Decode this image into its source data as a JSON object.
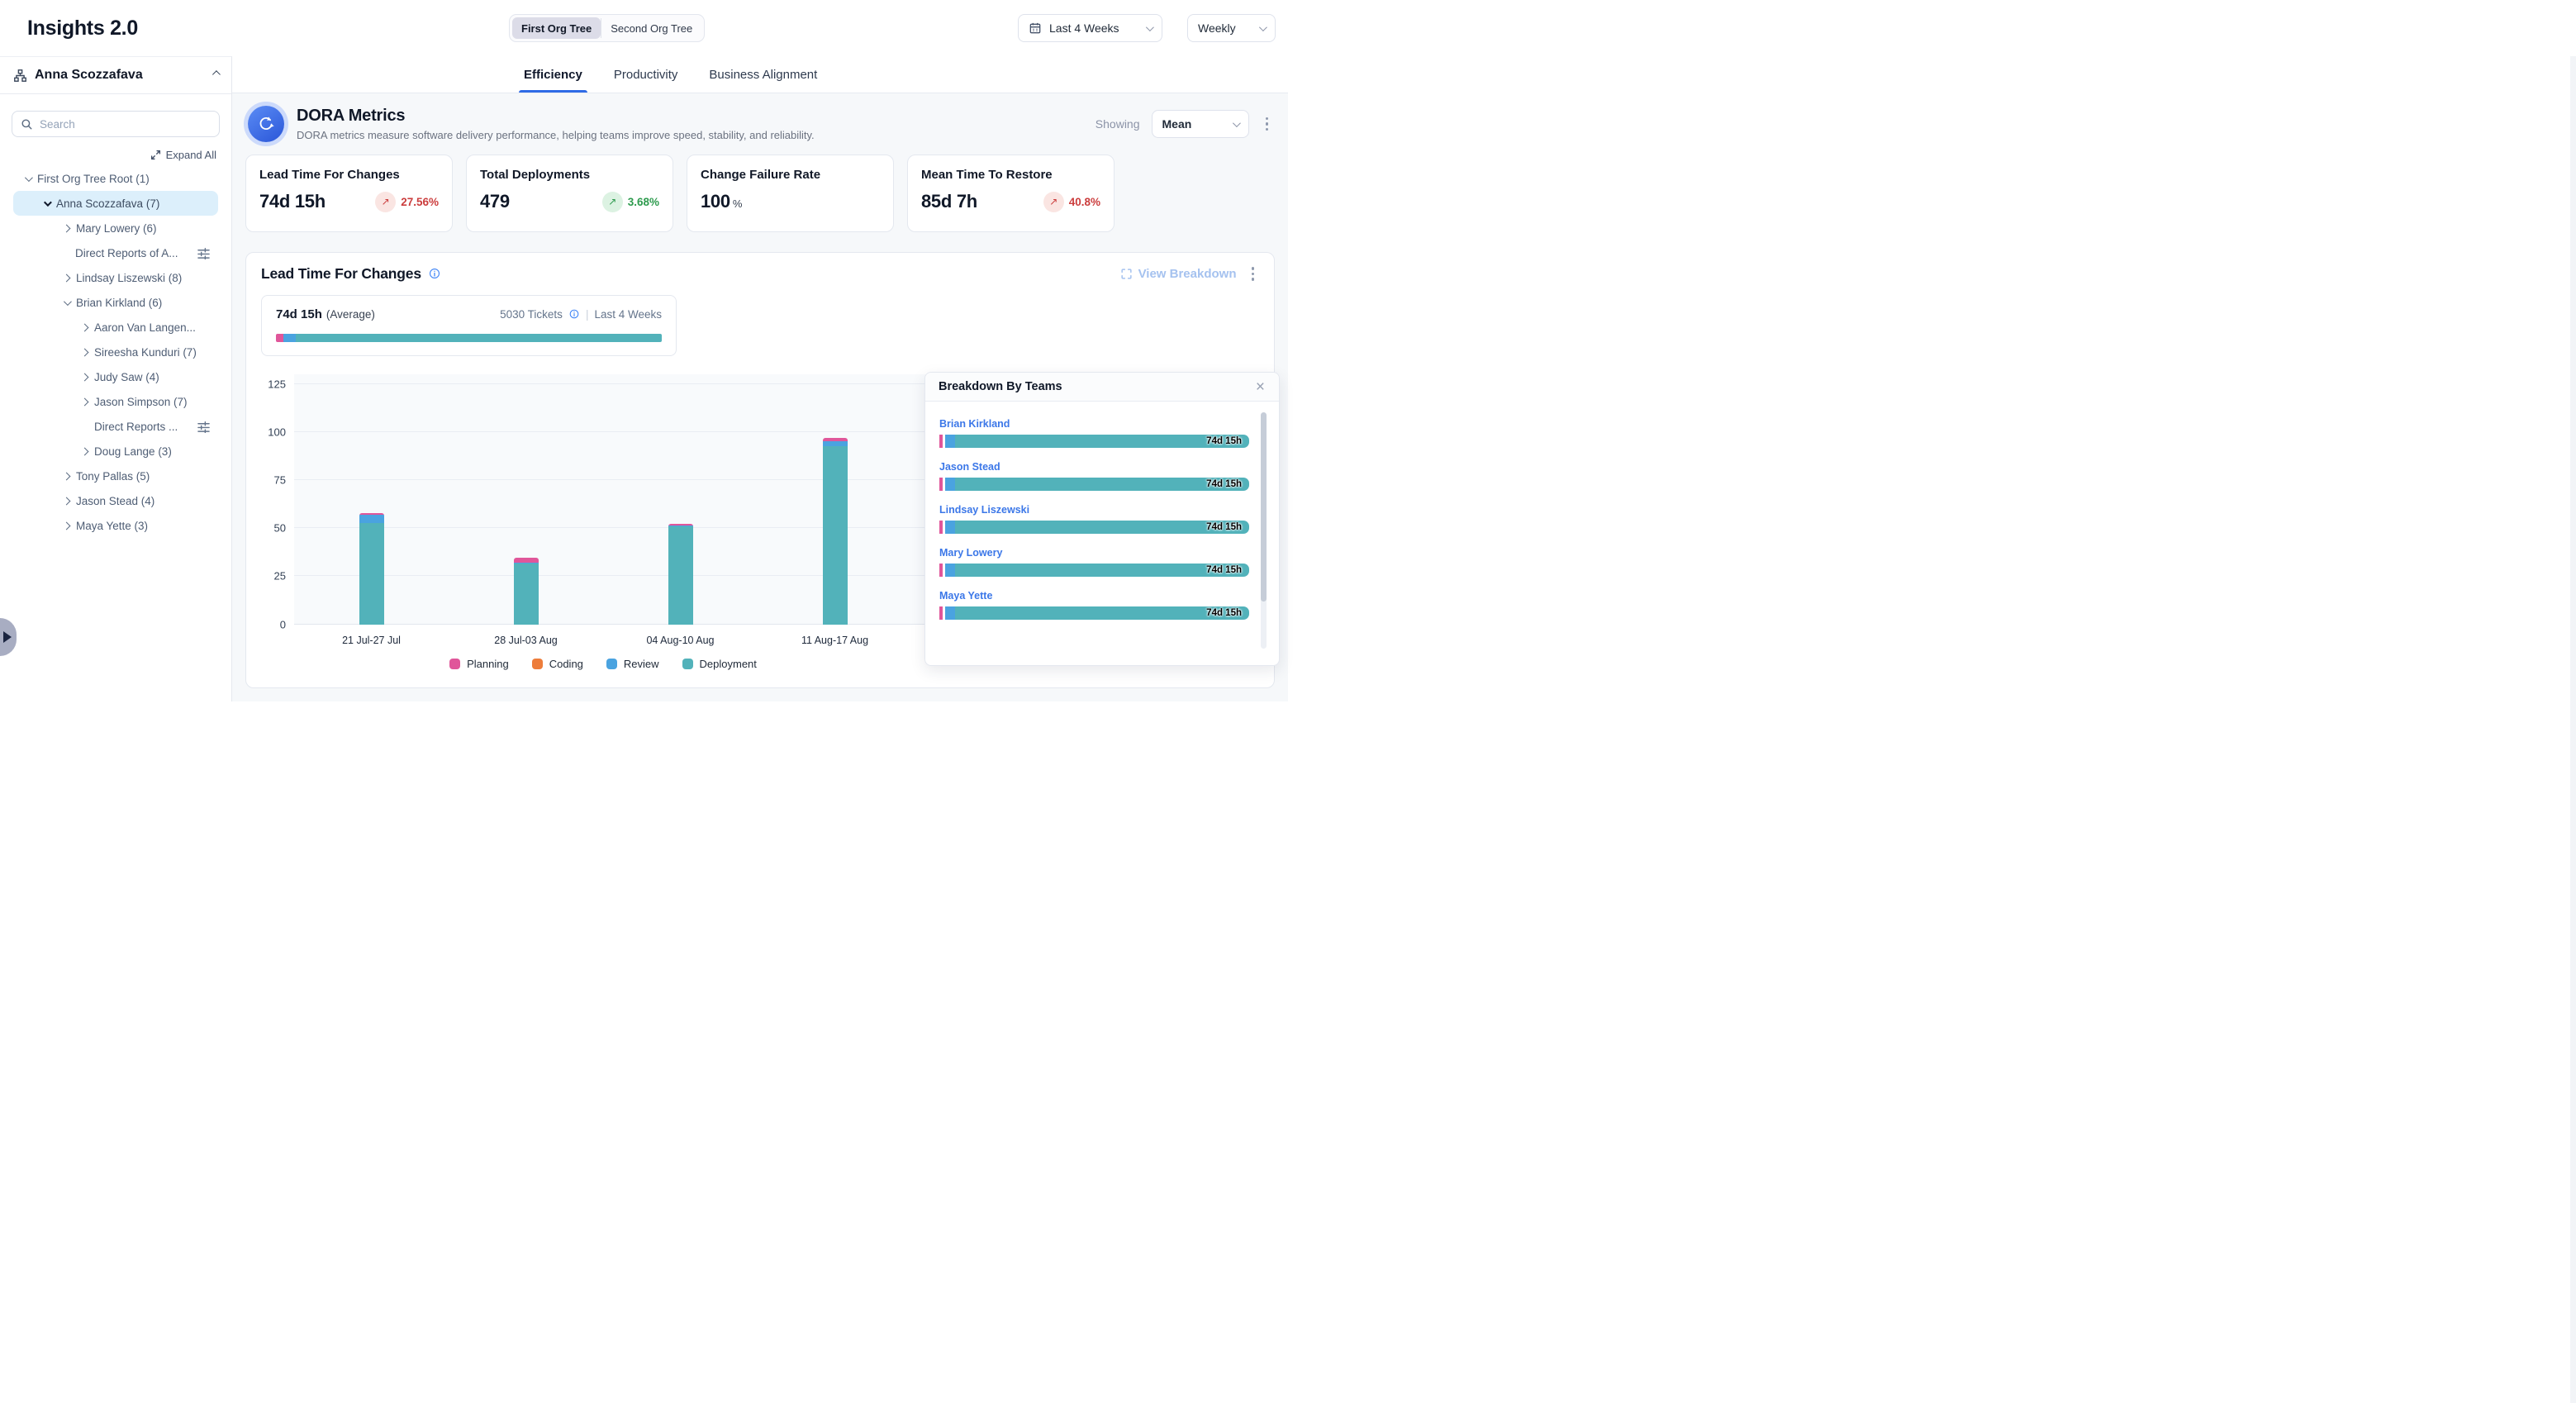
{
  "app": {
    "title": "Insights 2.0"
  },
  "header": {
    "org_toggle": {
      "options": [
        "First Org Tree",
        "Second Org Tree"
      ],
      "selected": "First Org Tree"
    },
    "date_range": {
      "label": "Last 4 Weeks"
    },
    "granularity": {
      "label": "Weekly"
    }
  },
  "sidebar": {
    "user": "Anna Scozzafava",
    "search_placeholder": "Search",
    "expand_all_label": "Expand All",
    "tree": [
      {
        "label": "First Org Tree Root (1)",
        "chevron": "down",
        "depth": 0
      },
      {
        "label": "Anna Scozzafava (7)",
        "chevron": "down",
        "depth": 1,
        "selected": true
      },
      {
        "label": "Mary Lowery (6)",
        "chevron": "right",
        "depth": 2
      },
      {
        "label": "Direct Reports of A...",
        "chevron": null,
        "depth": 2,
        "trailing_icon": "sliders-icon"
      },
      {
        "label": "Lindsay Liszewski (8)",
        "chevron": "right",
        "depth": 2
      },
      {
        "label": "Brian Kirkland (6)",
        "chevron": "down",
        "depth": 2
      },
      {
        "label": "Aaron Van Langen...",
        "chevron": "right",
        "depth": 3
      },
      {
        "label": "Sireesha Kunduri (7)",
        "chevron": "right",
        "depth": 3
      },
      {
        "label": "Judy Saw (4)",
        "chevron": "right",
        "depth": 3
      },
      {
        "label": "Jason Simpson (7)",
        "chevron": "right",
        "depth": 3
      },
      {
        "label": "Direct Reports ...",
        "chevron": null,
        "depth": 3,
        "trailing_icon": "sliders-icon"
      },
      {
        "label": "Doug Lange (3)",
        "chevron": "right",
        "depth": 3
      },
      {
        "label": "Tony Pallas (5)",
        "chevron": "right",
        "depth": 2
      },
      {
        "label": "Jason Stead (4)",
        "chevron": "right",
        "depth": 2
      },
      {
        "label": "Maya Yette (3)",
        "chevron": "right",
        "depth": 2
      }
    ]
  },
  "tabs": {
    "items": [
      "Efficiency",
      "Productivity",
      "Business Alignment"
    ],
    "active": "Efficiency"
  },
  "dora": {
    "title": "DORA Metrics",
    "description": "DORA metrics measure software delivery performance, helping teams improve speed, stability, and reliability.",
    "showing_label": "Showing",
    "showing_value": "Mean",
    "cards": [
      {
        "title": "Lead Time For Changes",
        "value": "74d 15h",
        "suffix": "",
        "delta": "27.56%",
        "trend": "up",
        "sentiment": "negative"
      },
      {
        "title": "Total Deployments",
        "value": "479",
        "suffix": "",
        "delta": "3.68%",
        "trend": "up",
        "sentiment": "positive"
      },
      {
        "title": "Change Failure Rate",
        "value": "100",
        "suffix": "%"
      },
      {
        "title": "Mean Time To Restore",
        "value": "85d 7h",
        "suffix": "",
        "delta": "40.8%",
        "trend": "up",
        "sentiment": "negative"
      }
    ]
  },
  "lead_time_section": {
    "title": "Lead Time For Changes",
    "view_breakdown_label": "View Breakdown",
    "summary": {
      "value": "74d 15h",
      "qualifier": "(Average)",
      "tickets": "5030 Tickets",
      "period": "Last 4 Weeks",
      "segments": [
        {
          "name": "Planning",
          "pct": 1.9
        },
        {
          "name": "Review",
          "pct": 3.2
        },
        {
          "name": "Deployment",
          "pct": 94.9
        }
      ]
    }
  },
  "chart_data": {
    "type": "bar",
    "stacked": true,
    "title": "Lead Time For Changes",
    "categories": [
      "21 Jul-27 Jul",
      "28 Jul-03 Aug",
      "04 Aug-10 Aug",
      "11 Aug-17 Aug"
    ],
    "series": [
      {
        "name": "Planning",
        "values": [
          1.0,
          2.5,
          1.0,
          2.0
        ]
      },
      {
        "name": "Coding",
        "values": [
          0,
          0,
          0,
          0
        ]
      },
      {
        "name": "Review",
        "values": [
          4.5,
          0.7,
          0.3,
          2.5
        ]
      },
      {
        "name": "Deployment",
        "values": [
          52.5,
          31.5,
          51.0,
          92.5
        ]
      }
    ],
    "totals": [
      58,
      34.7,
      52.3,
      97
    ],
    "xlabel": "",
    "ylabel": "",
    "ylim": [
      0,
      125
    ],
    "yticks": [
      0,
      25,
      50,
      75,
      100,
      125
    ],
    "grid": true,
    "legend_position": "bottom"
  },
  "breakdown_panel": {
    "title": "Breakdown By Teams",
    "bar_segments": [
      {
        "name": "Planning",
        "pct": 1.2
      },
      {
        "name": "Review",
        "pct": 3.3
      },
      {
        "name": "Deployment",
        "pct": 95.5
      }
    ],
    "teams": [
      {
        "name": "Brian Kirkland",
        "value": "74d 15h"
      },
      {
        "name": "Jason Stead",
        "value": "74d 15h"
      },
      {
        "name": "Lindsay Liszewski",
        "value": "74d 15h"
      },
      {
        "name": "Mary Lowery",
        "value": "74d 15h"
      },
      {
        "name": "Maya Yette",
        "value": "74d 15h"
      }
    ]
  },
  "colors": {
    "planning": "#e0569a",
    "coding": "#ed7d3b",
    "review": "#4aa3e0",
    "deployment": "#52b2ba",
    "accent": "#2f6be6",
    "positive": "#2e9b4e",
    "negative": "#cb3d3d",
    "team_link": "#3b77e8"
  }
}
